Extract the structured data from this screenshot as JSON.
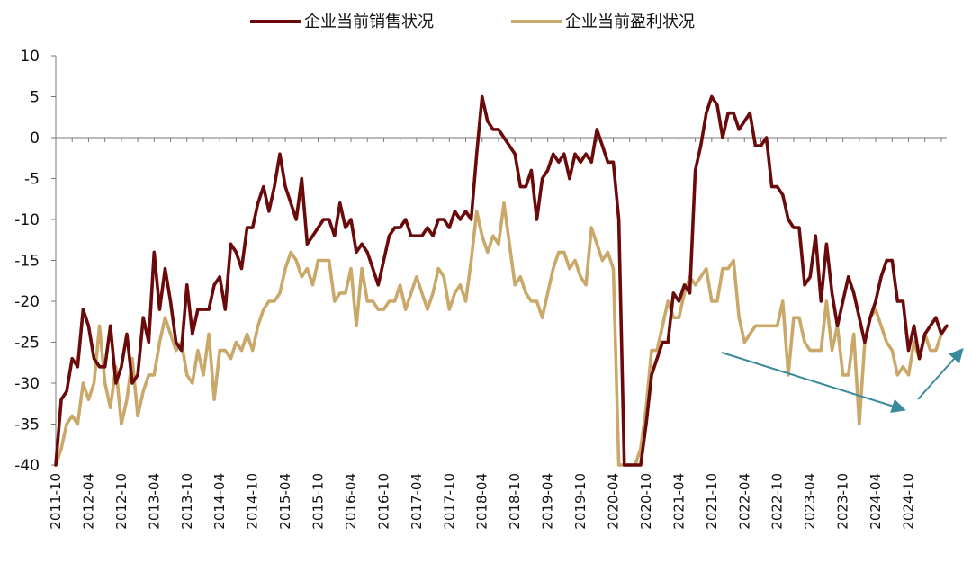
{
  "chart_data": {
    "type": "line",
    "legend": {
      "placement": "top-center",
      "items": [
        "企业当前销售状况",
        "企业当前盈利状况"
      ]
    },
    "ylim": [
      -40,
      10
    ],
    "yticks": [
      10,
      5,
      0,
      -5,
      -10,
      -15,
      -20,
      -25,
      -30,
      -35,
      -40
    ],
    "xticks": [
      "2011-10",
      "2012-04",
      "2012-10",
      "2013-04",
      "2013-10",
      "2014-04",
      "2014-10",
      "2015-04",
      "2015-10",
      "2016-04",
      "2016-10",
      "2017-04",
      "2017-10",
      "2018-04",
      "2018-10",
      "2019-04",
      "2019-10",
      "2020-04",
      "2020-10",
      "2021-04",
      "2021-10",
      "2022-04",
      "2022-10",
      "2023-04",
      "2023-10",
      "2024-04",
      "2024-10"
    ],
    "x_start": "2011-10",
    "x_end": "2025-03",
    "series": [
      {
        "name": "企业当前销售状况",
        "color": "#6B0A0A",
        "values": [
          -40,
          -32,
          -31,
          -27,
          -28,
          -21,
          -23,
          -27,
          -28,
          -28,
          -23,
          -30,
          -28,
          -24,
          -30,
          -29,
          -22,
          -25,
          -14,
          -21,
          -16,
          -20,
          -25,
          -26,
          -18,
          -24,
          -21,
          -21,
          -21,
          -18,
          -17,
          -21,
          -13,
          -14,
          -16,
          -11,
          -11,
          -8,
          -6,
          -9,
          -6,
          -2,
          -6,
          -8,
          -10,
          -5,
          -13,
          -12,
          -11,
          -10,
          -10,
          -12,
          -8,
          -11,
          -10,
          -14,
          -13,
          -14,
          -16,
          -18,
          -15,
          -12,
          -11,
          -11,
          -10,
          -12,
          -12,
          -12,
          -11,
          -12,
          -10,
          -10,
          -11,
          -9,
          -10,
          -9,
          -10,
          -2,
          5,
          2,
          1,
          1,
          0,
          -1,
          -2,
          -6,
          -6,
          -4,
          -10,
          -5,
          -4,
          -2,
          -3,
          -2,
          -5,
          -2,
          -3,
          -2,
          -3,
          1,
          -1,
          -3,
          -3,
          -10,
          -40,
          -40,
          -40,
          -40,
          -35,
          -29,
          -27,
          -25,
          -25,
          -19,
          -20,
          -18,
          -19,
          -4,
          -1,
          3,
          5,
          4,
          0,
          3,
          3,
          1,
          2,
          3,
          -1,
          -1,
          0,
          -6,
          -6,
          -7,
          -10,
          -11,
          -11,
          -18,
          -17,
          -12,
          -20,
          -13,
          -19,
          -23,
          -20,
          -17,
          -19,
          -22,
          -25,
          -22,
          -20,
          -17,
          -15,
          -15,
          -20,
          -20,
          -26,
          -23,
          -27,
          -24,
          -23,
          -22,
          -24,
          -23
        ]
      },
      {
        "name": "企业当前盈利状况",
        "color": "#C9A86A",
        "values": [
          -40,
          -38,
          -35,
          -34,
          -35,
          -30,
          -32,
          -30,
          -23,
          -30,
          -33,
          -28,
          -35,
          -32,
          -27,
          -34,
          -31,
          -29,
          -29,
          -25,
          -22,
          -24,
          -26,
          -25,
          -29,
          -30,
          -26,
          -29,
          -24,
          -32,
          -26,
          -26,
          -27,
          -25,
          -26,
          -24,
          -26,
          -23,
          -21,
          -20,
          -20,
          -19,
          -16,
          -14,
          -15,
          -17,
          -16,
          -18,
          -15,
          -15,
          -15,
          -20,
          -19,
          -19,
          -16,
          -23,
          -16,
          -20,
          -20,
          -21,
          -21,
          -20,
          -20,
          -18,
          -21,
          -19,
          -17,
          -19,
          -21,
          -19,
          -16,
          -17,
          -21,
          -19,
          -18,
          -20,
          -15,
          -9,
          -12,
          -14,
          -12,
          -13,
          -8,
          -13,
          -18,
          -17,
          -19,
          -20,
          -20,
          -22,
          -19,
          -16,
          -14,
          -14,
          -16,
          -15,
          -17,
          -18,
          -11,
          -13,
          -15,
          -14,
          -16,
          -40,
          -40,
          -40,
          -40,
          -38,
          -33,
          -26,
          -26,
          -23,
          -20,
          -22,
          -22,
          -19,
          -17,
          -18,
          -17,
          -16,
          -20,
          -20,
          -16,
          -16,
          -15,
          -22,
          -25,
          -24,
          -23,
          -23,
          -23,
          -23,
          -23,
          -20,
          -29,
          -22,
          -22,
          -25,
          -26,
          -26,
          -26,
          -20,
          -26,
          -23,
          -29,
          -29,
          -24,
          -35,
          -25,
          -22,
          -21,
          -23,
          -25,
          -26,
          -29,
          -28,
          -29,
          -25,
          -27,
          -24,
          -26,
          -26,
          -24
        ]
      }
    ],
    "annotations": [
      {
        "type": "arrow",
        "description": "downward trend arrow",
        "color": "#3A8A9C"
      },
      {
        "type": "arrow",
        "description": "upward trend arrow",
        "color": "#3A8A9C"
      }
    ]
  }
}
